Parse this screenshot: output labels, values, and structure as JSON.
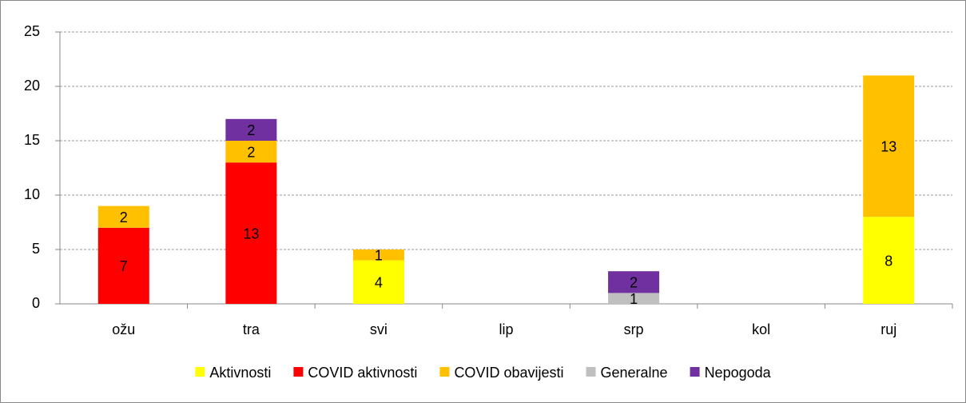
{
  "chart_data": {
    "type": "stacked_bar",
    "categories": [
      "ožu",
      "tra",
      "svi",
      "lip",
      "srp",
      "kol",
      "ruj"
    ],
    "series": [
      {
        "name": "Aktivnosti",
        "color": "#FFFF00",
        "values": [
          null,
          null,
          4,
          null,
          null,
          null,
          8
        ]
      },
      {
        "name": "COVID aktivnosti",
        "color": "#FF0000",
        "values": [
          7,
          13,
          null,
          null,
          null,
          null,
          null
        ]
      },
      {
        "name": "COVID obavijesti",
        "color": "#FFC000",
        "values": [
          2,
          2,
          1,
          null,
          null,
          null,
          13
        ]
      },
      {
        "name": "Generalne",
        "color": "#BFBFBF",
        "values": [
          null,
          null,
          null,
          null,
          1,
          null,
          null
        ]
      },
      {
        "name": "Nepogoda",
        "color": "#7030A0",
        "values": [
          null,
          2,
          null,
          null,
          2,
          null,
          null
        ]
      }
    ],
    "ylim": [
      0,
      25
    ],
    "yticks": [
      0,
      5,
      10,
      15,
      20,
      25
    ],
    "grid": true,
    "legend": "bottom"
  }
}
